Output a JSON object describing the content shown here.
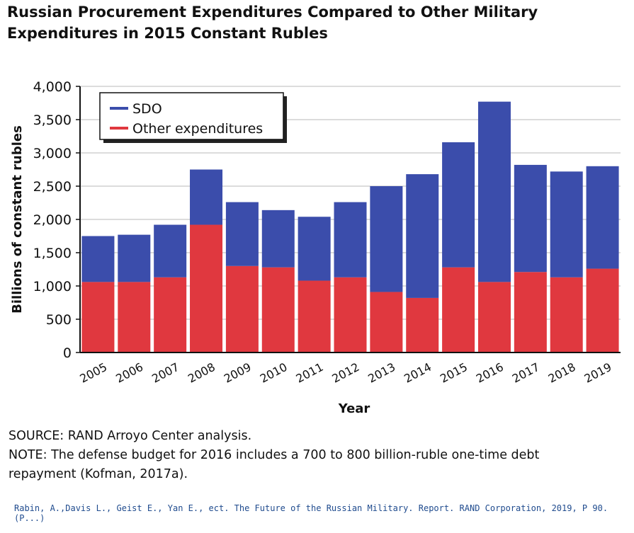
{
  "title_lines": [
    "Russian Procurement Expenditures Compared to Other Military",
    "Expenditures in 2015 Constant Rubles"
  ],
  "chart_data": {
    "type": "bar",
    "stacked": true,
    "categories": [
      "2005",
      "2006",
      "2007",
      "2008",
      "2009",
      "2010",
      "2011",
      "2012",
      "2013",
      "2014",
      "2015",
      "2016",
      "2017",
      "2018",
      "2019"
    ],
    "series": [
      {
        "name": "Other expenditures",
        "color": "#e0383f",
        "values": [
          1060,
          1060,
          1130,
          1920,
          1300,
          1280,
          1080,
          1130,
          910,
          820,
          1280,
          1060,
          1210,
          1130,
          1260
        ]
      },
      {
        "name": "SDO",
        "color": "#3b4dab",
        "values": [
          690,
          710,
          790,
          830,
          960,
          860,
          960,
          1130,
          1590,
          1860,
          1880,
          2710,
          1610,
          1590,
          1540
        ]
      }
    ],
    "legend_order": [
      "SDO",
      "Other expenditures"
    ],
    "legend_position": "top-left",
    "xlabel": "Year",
    "ylabel": "Billions of constant rubles",
    "ylim": [
      0,
      4000
    ],
    "yticks": [
      0,
      500,
      1000,
      1500,
      2000,
      2500,
      3000,
      3500,
      4000
    ],
    "ytick_labels": [
      "0",
      "500",
      "1,000",
      "1,500",
      "2,000",
      "2,500",
      "3,000",
      "3,500",
      "4,000"
    ],
    "grid": true
  },
  "source_line": "SOURCE: RAND Arroyo Center analysis.",
  "note_lines": [
    "NOTE: The defense budget for 2016 includes a 700 to 800 billion-ruble one-time debt",
    "repayment (Kofman, 2017a)."
  ],
  "citation": "Rabin, A.,Davis L., Geist E., Yan E., ect. The Future of the Russian Military. Report. RAND Corporation, 2019, P 90.(P...)"
}
